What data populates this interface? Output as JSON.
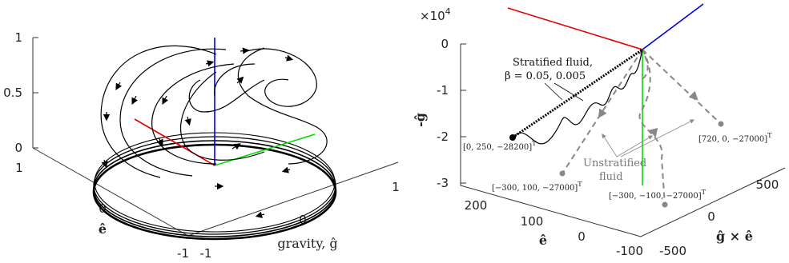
{
  "chart_data": [
    {
      "type": "line",
      "panel": "left",
      "projection": "3d",
      "xlabel": "gravity, ĝ",
      "ylabel": "ê",
      "zlabel": "",
      "x_ticks": [
        "-1",
        "0",
        "1"
      ],
      "y_ticks": [
        "-1",
        "0",
        "1"
      ],
      "z_ticks": [
        "0",
        "0.5",
        "1"
      ],
      "xlim": [
        -1,
        1
      ],
      "ylim": [
        -1,
        1
      ],
      "zlim": [
        0,
        1
      ],
      "axis_triad_colors": {
        "gravity": "#e00000",
        "e": "#00dd00",
        "vertical": "#0000dd"
      },
      "series": [
        {
          "color": "#000000",
          "description": "trajectories spiralling from the top down to the limit circle at z=0"
        }
      ],
      "limit_cycle_radius": 1
    },
    {
      "type": "line",
      "panel": "right",
      "projection": "3d",
      "exponent_label": "×10",
      "exponent_power": "4",
      "zlabel": "-ĝ",
      "ylabel": "ê",
      "xlabel": "ĝ × ê",
      "z_ticks": [
        "0",
        "-1",
        "-2",
        "-3"
      ],
      "y_ticks": [
        "200",
        "100",
        "0",
        "-100"
      ],
      "x_ticks": [
        "-500",
        "0",
        "500"
      ],
      "annotations": {
        "stratified_line1": "Stratified fluid,",
        "stratified_line2": "β = 0.05, 0.005",
        "unstratified_line1": "Unstratified",
        "unstratified_line2": "fluid"
      },
      "end_points": [
        {
          "label": "[0, 250, −28200]",
          "sup": "T",
          "x": 0,
          "y": 250,
          "z": -28200,
          "color": "#000000"
        },
        {
          "label": "[720, 0, −27000]",
          "sup": "T",
          "x": 720,
          "y": 0,
          "z": -27000,
          "color": "#888888"
        },
        {
          "label": "[−300, 100, −27000]",
          "sup": "T",
          "x": -300,
          "y": 100,
          "z": -27000,
          "color": "#888888"
        },
        {
          "label": "[−300, −100, −27000]",
          "sup": "T",
          "x": -300,
          "y": -100,
          "z": -27000,
          "color": "#888888"
        }
      ],
      "axis_triad_colors": {
        "red": "#e00000",
        "blue": "#0000dd",
        "green": "#00dd00"
      }
    }
  ]
}
